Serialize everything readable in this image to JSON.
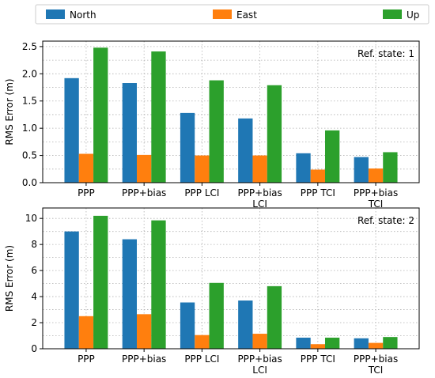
{
  "legend": {
    "placement": "top",
    "entries": [
      {
        "name": "North",
        "color": "#1f77b4"
      },
      {
        "name": "East",
        "color": "#ff7f0e"
      },
      {
        "name": "Up",
        "color": "#2ca02c"
      }
    ]
  },
  "chart_data": [
    {
      "type": "bar",
      "title": "",
      "annotation": "Ref. state: 1",
      "ylabel": "RMS Error (m)",
      "xlabel": "",
      "ylim": [
        0,
        2.6
      ],
      "yticks": [
        0.0,
        0.5,
        1.0,
        1.5,
        2.0,
        2.5
      ],
      "ytick_labels": [
        "0.0",
        "0.5",
        "1.0",
        "1.5",
        "2.0",
        "2.5"
      ],
      "grid": true,
      "categories": [
        "PPP",
        "PPP+bias",
        "PPP LCI",
        "PPP+bias\nLCI",
        "PPP TCI",
        "PPP+bias\nTCI"
      ],
      "series": [
        {
          "name": "North",
          "values": [
            1.92,
            1.83,
            1.28,
            1.18,
            0.54,
            0.47
          ]
        },
        {
          "name": "East",
          "values": [
            0.53,
            0.51,
            0.5,
            0.5,
            0.24,
            0.26
          ]
        },
        {
          "name": "Up",
          "values": [
            2.48,
            2.41,
            1.88,
            1.79,
            0.96,
            0.56
          ]
        }
      ]
    },
    {
      "type": "bar",
      "title": "",
      "annotation": "Ref. state: 2",
      "ylabel": "RMS Error (m)",
      "xlabel": "",
      "ylim": [
        0,
        10.8
      ],
      "yticks": [
        0,
        2,
        4,
        6,
        8,
        10
      ],
      "ytick_labels": [
        "0",
        "2",
        "4",
        "6",
        "8",
        "10"
      ],
      "grid": true,
      "categories": [
        "PPP",
        "PPP+bias",
        "PPP LCI",
        "PPP+bias\nLCI",
        "PPP TCI",
        "PPP+bias\nTCI"
      ],
      "series": [
        {
          "name": "North",
          "values": [
            9.0,
            8.4,
            3.55,
            3.7,
            0.85,
            0.8
          ]
        },
        {
          "name": "East",
          "values": [
            2.5,
            2.65,
            1.05,
            1.15,
            0.35,
            0.45
          ]
        },
        {
          "name": "Up",
          "values": [
            10.2,
            9.85,
            5.05,
            4.8,
            0.85,
            0.9
          ]
        }
      ]
    }
  ]
}
